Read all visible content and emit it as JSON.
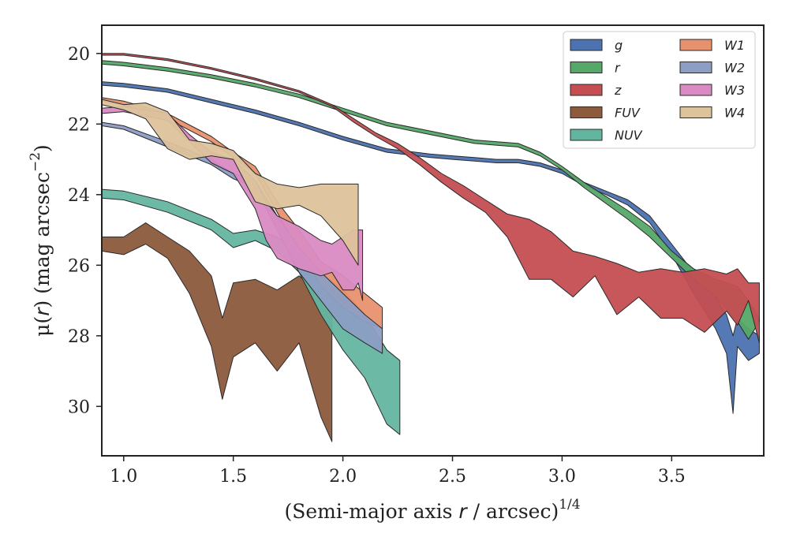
{
  "chart_data": {
    "type": "area",
    "xlabel_main": "(Semi-major axis ",
    "xlabel_var": "r",
    "xlabel_rest": " / arcsec)",
    "xlabel_sup": "1/4",
    "ylabel_main": "μ(",
    "ylabel_var": "r",
    "ylabel_rest": ") (mag arcsec",
    "ylabel_sup": "−2",
    "ylabel_close": ")",
    "xlim": [
      0.9,
      3.92
    ],
    "ylim": [
      31.4,
      19.2
    ],
    "y_inverted": true,
    "xticks": [
      1.0,
      1.5,
      2.0,
      2.5,
      3.0,
      3.5
    ],
    "xtick_labels": [
      "1.0",
      "1.5",
      "2.0",
      "2.5",
      "3.0",
      "3.5"
    ],
    "yticks": [
      20,
      22,
      24,
      26,
      28,
      30
    ],
    "ytick_labels": [
      "20",
      "22",
      "24",
      "26",
      "28",
      "30"
    ],
    "grid": false,
    "legend_position": "top-right",
    "series": [
      {
        "name": "g",
        "color": "#4c72b0",
        "x": [
          0.9,
          1.0,
          1.2,
          1.4,
          1.6,
          1.8,
          2.0,
          2.2,
          2.4,
          2.5,
          2.6,
          2.7,
          2.8,
          2.9,
          3.0,
          3.1,
          3.2,
          3.3,
          3.4,
          3.5,
          3.6,
          3.7,
          3.75,
          3.78,
          3.8,
          3.85,
          3.9
        ],
        "lower": [
          20.8,
          20.85,
          21.0,
          21.3,
          21.6,
          21.95,
          22.35,
          22.7,
          22.85,
          22.9,
          22.95,
          23.0,
          23.0,
          23.1,
          23.3,
          23.65,
          23.9,
          24.15,
          24.6,
          25.4,
          26.2,
          26.9,
          27.4,
          28.0,
          27.5,
          27.8,
          28.0
        ],
        "upper": [
          20.9,
          20.95,
          21.1,
          21.4,
          21.7,
          22.05,
          22.45,
          22.8,
          22.95,
          23.0,
          23.05,
          23.1,
          23.1,
          23.2,
          23.4,
          23.75,
          24.0,
          24.3,
          24.8,
          25.7,
          26.8,
          27.8,
          28.5,
          30.2,
          28.3,
          28.7,
          28.5
        ]
      },
      {
        "name": "r",
        "color": "#55a868",
        "x": [
          0.9,
          1.0,
          1.2,
          1.4,
          1.6,
          1.8,
          2.0,
          2.2,
          2.4,
          2.6,
          2.8,
          2.9,
          3.0,
          3.1,
          3.2,
          3.3,
          3.4,
          3.5,
          3.6,
          3.7,
          3.8,
          3.85,
          3.9
        ],
        "lower": [
          20.2,
          20.25,
          20.4,
          20.6,
          20.85,
          21.15,
          21.55,
          21.95,
          22.2,
          22.45,
          22.55,
          22.8,
          23.2,
          23.65,
          24.05,
          24.45,
          24.9,
          25.6,
          26.1,
          26.4,
          26.6,
          27.0,
          27.5
        ],
        "upper": [
          20.3,
          20.35,
          20.5,
          20.7,
          20.95,
          21.25,
          21.65,
          22.05,
          22.3,
          22.55,
          22.65,
          22.9,
          23.3,
          23.8,
          24.25,
          24.7,
          25.2,
          25.8,
          26.4,
          26.9,
          27.6,
          28.1,
          27.6
        ]
      },
      {
        "name": "z",
        "color": "#c44e52",
        "x": [
          0.9,
          1.0,
          1.2,
          1.4,
          1.6,
          1.8,
          1.95,
          2.05,
          2.15,
          2.25,
          2.35,
          2.45,
          2.55,
          2.65,
          2.75,
          2.85,
          2.95,
          3.05,
          3.15,
          3.25,
          3.35,
          3.45,
          3.55,
          3.65,
          3.75,
          3.8,
          3.85,
          3.9
        ],
        "lower": [
          20.0,
          20.0,
          20.15,
          20.4,
          20.7,
          21.05,
          21.45,
          21.85,
          22.25,
          22.55,
          22.95,
          23.4,
          23.75,
          24.15,
          24.55,
          24.7,
          25.05,
          25.6,
          25.75,
          25.95,
          26.2,
          26.1,
          26.2,
          26.1,
          26.25,
          26.1,
          26.5,
          26.5
        ],
        "upper": [
          20.05,
          20.05,
          20.2,
          20.45,
          20.75,
          21.1,
          21.5,
          21.95,
          22.35,
          22.7,
          23.15,
          23.65,
          24.1,
          24.5,
          25.2,
          26.4,
          26.4,
          26.9,
          26.3,
          27.4,
          26.9,
          27.5,
          27.5,
          27.9,
          27.3,
          27.7,
          27.0,
          28.2
        ]
      },
      {
        "name": "FUV",
        "color": "#8c5a3c",
        "x": [
          0.9,
          1.0,
          1.1,
          1.2,
          1.3,
          1.4,
          1.45,
          1.5,
          1.6,
          1.7,
          1.8,
          1.9,
          1.95
        ],
        "lower": [
          25.2,
          25.2,
          24.8,
          25.2,
          25.6,
          26.3,
          27.5,
          26.5,
          26.4,
          26.7,
          26.3,
          26.8,
          26.8
        ],
        "upper": [
          25.6,
          25.7,
          25.4,
          25.8,
          26.8,
          28.3,
          29.8,
          28.6,
          28.2,
          29.0,
          28.2,
          30.3,
          31.0
        ]
      },
      {
        "name": "NUV",
        "color": "#64b5a0",
        "x": [
          0.9,
          1.0,
          1.2,
          1.4,
          1.5,
          1.6,
          1.7,
          1.8,
          1.9,
          2.0,
          2.1,
          2.2,
          2.26
        ],
        "lower": [
          23.85,
          23.9,
          24.2,
          24.7,
          25.1,
          25.0,
          25.2,
          25.6,
          26.2,
          26.7,
          27.4,
          28.4,
          28.7
        ],
        "upper": [
          24.1,
          24.15,
          24.5,
          25.0,
          25.5,
          25.3,
          25.6,
          26.2,
          27.4,
          28.4,
          29.2,
          30.5,
          30.8
        ]
      },
      {
        "name": "W1",
        "color": "#e8916e",
        "x": [
          0.9,
          1.0,
          1.2,
          1.4,
          1.5,
          1.6,
          1.7,
          1.8,
          1.9,
          2.0,
          2.1,
          2.18
        ],
        "lower": [
          21.25,
          21.35,
          21.7,
          22.35,
          22.8,
          23.2,
          24.2,
          25.0,
          25.9,
          26.3,
          26.8,
          27.2
        ],
        "upper": [
          21.35,
          21.45,
          21.85,
          22.5,
          22.95,
          23.4,
          24.5,
          25.6,
          26.6,
          27.2,
          27.6,
          27.8
        ]
      },
      {
        "name": "W2",
        "color": "#8c9ec4",
        "x": [
          0.9,
          1.0,
          1.2,
          1.4,
          1.5,
          1.6,
          1.7,
          1.8,
          1.9,
          2.0,
          2.1,
          2.18
        ],
        "lower": [
          21.95,
          22.05,
          22.5,
          23.0,
          23.4,
          23.6,
          24.6,
          25.5,
          26.2,
          26.8,
          27.4,
          27.8
        ],
        "upper": [
          22.05,
          22.15,
          22.65,
          23.15,
          23.55,
          23.8,
          25.0,
          26.2,
          27.0,
          27.8,
          28.2,
          28.5
        ]
      },
      {
        "name": "W3",
        "color": "#da8bc3",
        "x": [
          0.9,
          1.0,
          1.2,
          1.3,
          1.4,
          1.5,
          1.6,
          1.65,
          1.7,
          1.8,
          1.9,
          1.95,
          2.0,
          2.05,
          2.07,
          2.09
        ],
        "lower": [
          21.55,
          21.5,
          21.7,
          22.3,
          22.8,
          23.0,
          23.6,
          24.2,
          24.6,
          24.9,
          25.3,
          25.4,
          25.2,
          25.0,
          25.0,
          25.0
        ],
        "upper": [
          21.7,
          21.65,
          21.9,
          22.5,
          23.1,
          23.4,
          24.4,
          25.3,
          25.8,
          26.1,
          26.3,
          26.2,
          26.7,
          26.7,
          26.5,
          27.0
        ]
      },
      {
        "name": "W4",
        "color": "#ddc39c",
        "x": [
          0.9,
          1.0,
          1.1,
          1.2,
          1.3,
          1.4,
          1.5,
          1.6,
          1.7,
          1.8,
          1.9,
          2.0,
          2.07
        ],
        "lower": [
          21.3,
          21.45,
          21.4,
          21.65,
          22.45,
          22.55,
          22.75,
          23.4,
          23.7,
          23.8,
          23.7,
          23.7,
          23.7
        ],
        "upper": [
          21.45,
          21.6,
          21.85,
          22.7,
          23.0,
          22.9,
          23.0,
          24.2,
          24.4,
          24.3,
          24.6,
          25.3,
          26.0
        ]
      }
    ]
  }
}
